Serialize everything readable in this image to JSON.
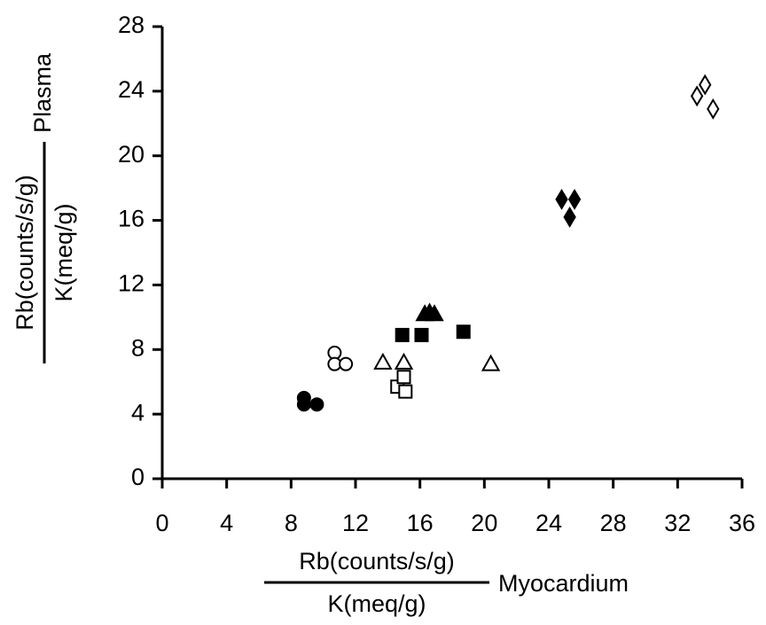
{
  "chart_data": {
    "type": "scatter",
    "x_label": {
      "numerator": "Rb(counts/s/g)",
      "denominator": "K(meq/g)",
      "suffix": "Myocardium"
    },
    "y_label": {
      "numerator": "Rb(counts/s/g)",
      "denominator": "K(meq/g)",
      "suffix": "Plasma"
    },
    "xlim": [
      0,
      36
    ],
    "xticks": [
      0,
      4,
      8,
      12,
      16,
      20,
      24,
      28,
      32,
      36
    ],
    "ylim": [
      0,
      28
    ],
    "yticks": [
      0,
      4,
      8,
      12,
      16,
      20,
      24,
      28
    ],
    "series": [
      {
        "marker": "circle",
        "filled": true,
        "color": "#000",
        "x": [
          8.8,
          8.8,
          9.6
        ],
        "y": [
          5.0,
          4.6,
          4.6
        ]
      },
      {
        "marker": "circle",
        "filled": false,
        "color": "#000",
        "x": [
          10.7,
          10.7,
          11.4
        ],
        "y": [
          7.8,
          7.1,
          7.1
        ]
      },
      {
        "marker": "triangle",
        "filled": false,
        "color": "#000",
        "x": [
          13.7,
          15.0,
          20.4
        ],
        "y": [
          7.2,
          7.2,
          7.1
        ]
      },
      {
        "marker": "square",
        "filled": false,
        "color": "#000",
        "x": [
          14.6,
          15.0,
          15.1
        ],
        "y": [
          5.7,
          6.3,
          5.4
        ]
      },
      {
        "marker": "square",
        "filled": true,
        "color": "#000",
        "x": [
          14.9,
          16.1,
          18.7
        ],
        "y": [
          8.9,
          8.9,
          9.1
        ]
      },
      {
        "marker": "triangle",
        "filled": true,
        "color": "#000",
        "x": [
          16.3,
          16.6,
          16.9
        ],
        "y": [
          10.2,
          10.3,
          10.2
        ]
      },
      {
        "marker": "diamond",
        "filled": true,
        "color": "#000",
        "x": [
          24.8,
          25.6,
          25.3
        ],
        "y": [
          17.3,
          17.3,
          16.2
        ]
      },
      {
        "marker": "diamond",
        "filled": false,
        "color": "#000",
        "x": [
          33.2,
          33.7,
          34.2
        ],
        "y": [
          23.7,
          24.4,
          22.9
        ]
      }
    ]
  }
}
